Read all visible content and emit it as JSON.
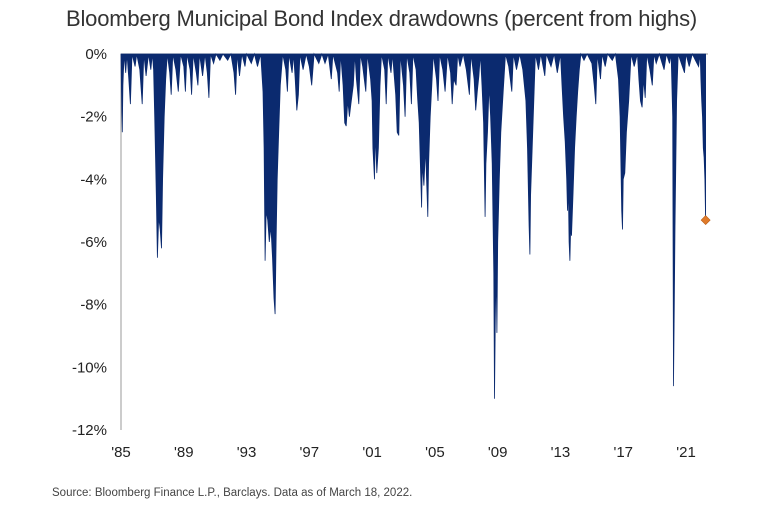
{
  "chart_data": {
    "type": "area",
    "title": "Bloomberg Municipal Bond Index drawdowns (percent from highs)",
    "xlabel": "",
    "ylabel": "",
    "x_tick_labels": [
      "'85",
      "'89",
      "'93",
      "'97",
      "'01",
      "'05",
      "'09",
      "'13",
      "'17",
      "'21"
    ],
    "x_ticks": [
      1985,
      1989,
      1993,
      1997,
      2001,
      2005,
      2009,
      2013,
      2017,
      2021
    ],
    "y_tick_labels": [
      "0%",
      "-2%",
      "-4%",
      "-6%",
      "-8%",
      "-10%",
      "-12%"
    ],
    "y_ticks": [
      0,
      -2,
      -4,
      -6,
      -8,
      -10,
      -12
    ],
    "xlim": [
      1985,
      2022.4
    ],
    "ylim": [
      -12,
      0
    ],
    "grid": false,
    "series": [
      {
        "color": "#0b2a6f",
        "points": [
          [
            1985.0,
            0
          ],
          [
            1985.03,
            -1.2
          ],
          [
            1985.08,
            -2.5
          ],
          [
            1985.12,
            -1.0
          ],
          [
            1985.2,
            0
          ],
          [
            1985.3,
            -0.6
          ],
          [
            1985.38,
            0
          ],
          [
            1985.5,
            -0.8
          ],
          [
            1985.6,
            -1.6
          ],
          [
            1985.7,
            0
          ],
          [
            1985.9,
            -0.4
          ],
          [
            1986.0,
            0
          ],
          [
            1986.2,
            -0.5
          ],
          [
            1986.35,
            -1.6
          ],
          [
            1986.45,
            0
          ],
          [
            1986.6,
            -0.7
          ],
          [
            1986.75,
            0
          ],
          [
            1986.9,
            -0.5
          ],
          [
            1987.0,
            0
          ],
          [
            1987.08,
            -0.5
          ],
          [
            1987.15,
            -2.0
          ],
          [
            1987.25,
            -4.5
          ],
          [
            1987.32,
            -6.5
          ],
          [
            1987.4,
            -5.2
          ],
          [
            1987.5,
            -5.6
          ],
          [
            1987.58,
            -6.2
          ],
          [
            1987.65,
            -4.0
          ],
          [
            1987.75,
            -2.0
          ],
          [
            1987.85,
            -0.8
          ],
          [
            1987.95,
            0
          ],
          [
            1988.1,
            -0.6
          ],
          [
            1988.2,
            -1.3
          ],
          [
            1988.3,
            0
          ],
          [
            1988.5,
            -0.5
          ],
          [
            1988.65,
            -1.2
          ],
          [
            1988.8,
            0
          ],
          [
            1989.0,
            -0.4
          ],
          [
            1989.1,
            -1.2
          ],
          [
            1989.2,
            0
          ],
          [
            1989.4,
            -0.5
          ],
          [
            1989.5,
            -1.3
          ],
          [
            1989.6,
            0
          ],
          [
            1989.8,
            -0.6
          ],
          [
            1989.9,
            -1.0
          ],
          [
            1990.0,
            0
          ],
          [
            1990.2,
            -0.7
          ],
          [
            1990.35,
            0
          ],
          [
            1990.5,
            -0.6
          ],
          [
            1990.6,
            -1.4
          ],
          [
            1990.7,
            0
          ],
          [
            1990.9,
            -0.3
          ],
          [
            1991.05,
            0
          ],
          [
            1991.3,
            -0.2
          ],
          [
            1991.5,
            0
          ],
          [
            1991.8,
            -0.2
          ],
          [
            1992.0,
            0
          ],
          [
            1992.2,
            -0.6
          ],
          [
            1992.3,
            -1.3
          ],
          [
            1992.4,
            0
          ],
          [
            1992.55,
            -0.7
          ],
          [
            1992.7,
            0
          ],
          [
            1992.9,
            -0.4
          ],
          [
            1993.0,
            0
          ],
          [
            1993.3,
            -0.3
          ],
          [
            1993.5,
            0
          ],
          [
            1993.7,
            -0.4
          ],
          [
            1993.9,
            0
          ],
          [
            1994.05,
            -1.2
          ],
          [
            1994.12,
            -3.0
          ],
          [
            1994.18,
            -6.6
          ],
          [
            1994.25,
            -5.0
          ],
          [
            1994.35,
            -5.3
          ],
          [
            1994.45,
            -6.0
          ],
          [
            1994.55,
            -5.5
          ],
          [
            1994.65,
            -6.5
          ],
          [
            1994.75,
            -7.8
          ],
          [
            1994.82,
            -8.3
          ],
          [
            1994.88,
            -6.0
          ],
          [
            1994.95,
            -4.0
          ],
          [
            1995.05,
            -2.5
          ],
          [
            1995.15,
            -1.0
          ],
          [
            1995.3,
            0
          ],
          [
            1995.5,
            -0.5
          ],
          [
            1995.6,
            -1.2
          ],
          [
            1995.7,
            0
          ],
          [
            1995.9,
            -0.6
          ],
          [
            1996.0,
            0
          ],
          [
            1996.1,
            -0.8
          ],
          [
            1996.2,
            -1.8
          ],
          [
            1996.3,
            -1.3
          ],
          [
            1996.4,
            0
          ],
          [
            1996.6,
            -0.5
          ],
          [
            1996.8,
            0
          ],
          [
            1997.0,
            -0.4
          ],
          [
            1997.15,
            -1.0
          ],
          [
            1997.3,
            0
          ],
          [
            1997.6,
            -0.3
          ],
          [
            1997.8,
            0
          ],
          [
            1998.0,
            -0.3
          ],
          [
            1998.2,
            0
          ],
          [
            1998.4,
            -0.8
          ],
          [
            1998.5,
            0
          ],
          [
            1998.8,
            -0.6
          ],
          [
            1998.9,
            -1.2
          ],
          [
            1999.0,
            0
          ],
          [
            1999.15,
            -1.0
          ],
          [
            1999.25,
            -2.2
          ],
          [
            1999.35,
            -2.3
          ],
          [
            1999.45,
            -1.5
          ],
          [
            1999.55,
            -2.0
          ],
          [
            1999.65,
            -1.6
          ],
          [
            1999.8,
            -1.0
          ],
          [
            1999.9,
            0
          ],
          [
            2000.0,
            -0.8
          ],
          [
            2000.15,
            -1.6
          ],
          [
            2000.25,
            0
          ],
          [
            2000.4,
            -0.4
          ],
          [
            2000.6,
            -1.2
          ],
          [
            2000.7,
            0
          ],
          [
            2000.9,
            -0.8
          ],
          [
            2001.0,
            -1.5
          ],
          [
            2001.05,
            -3.0
          ],
          [
            2001.1,
            -3.5
          ],
          [
            2001.15,
            -4.0
          ],
          [
            2001.2,
            -2.5
          ],
          [
            2001.3,
            -3.8
          ],
          [
            2001.4,
            -3.0
          ],
          [
            2001.5,
            -1.0
          ],
          [
            2001.6,
            0
          ],
          [
            2001.8,
            -0.5
          ],
          [
            2001.9,
            -1.6
          ],
          [
            2002.0,
            0
          ],
          [
            2002.2,
            -0.6
          ],
          [
            2002.3,
            0
          ],
          [
            2002.5,
            -1.3
          ],
          [
            2002.6,
            -2.5
          ],
          [
            2002.7,
            -2.6
          ],
          [
            2002.8,
            0
          ],
          [
            2003.0,
            -1.0
          ],
          [
            2003.1,
            -2.0
          ],
          [
            2003.2,
            0
          ],
          [
            2003.4,
            -0.6
          ],
          [
            2003.5,
            -1.6
          ],
          [
            2003.6,
            0
          ],
          [
            2003.8,
            -0.5
          ],
          [
            2003.9,
            -1.4
          ],
          [
            2004.0,
            -2.2
          ],
          [
            2004.1,
            -4.0
          ],
          [
            2004.15,
            -4.9
          ],
          [
            2004.2,
            -3.5
          ],
          [
            2004.3,
            -4.2
          ],
          [
            2004.4,
            -3.0
          ],
          [
            2004.5,
            -4.5
          ],
          [
            2004.55,
            -5.2
          ],
          [
            2004.6,
            -3.5
          ],
          [
            2004.7,
            -2.0
          ],
          [
            2004.8,
            -1.0
          ],
          [
            2004.9,
            0
          ],
          [
            2005.1,
            -0.8
          ],
          [
            2005.2,
            -1.5
          ],
          [
            2005.3,
            0
          ],
          [
            2005.5,
            -0.5
          ],
          [
            2005.65,
            -1.2
          ],
          [
            2005.8,
            0
          ],
          [
            2006.0,
            -0.6
          ],
          [
            2006.1,
            -1.6
          ],
          [
            2006.2,
            -0.8
          ],
          [
            2006.35,
            -1.0
          ],
          [
            2006.45,
            0
          ],
          [
            2006.6,
            -0.4
          ],
          [
            2006.8,
            0
          ],
          [
            2007.0,
            -0.5
          ],
          [
            2007.2,
            -1.3
          ],
          [
            2007.3,
            0
          ],
          [
            2007.5,
            -0.8
          ],
          [
            2007.6,
            -1.8
          ],
          [
            2007.7,
            -1.2
          ],
          [
            2007.8,
            -0.7
          ],
          [
            2007.9,
            0
          ],
          [
            2008.0,
            -1.0
          ],
          [
            2008.1,
            -2.2
          ],
          [
            2008.2,
            -5.2
          ],
          [
            2008.25,
            -3.5
          ],
          [
            2008.35,
            -2.5
          ],
          [
            2008.45,
            -1.0
          ],
          [
            2008.55,
            -2.0
          ],
          [
            2008.65,
            -3.5
          ],
          [
            2008.75,
            -7.0
          ],
          [
            2008.8,
            -11.0
          ],
          [
            2008.85,
            -8.5
          ],
          [
            2008.9,
            -6.8
          ],
          [
            2008.95,
            -8.9
          ],
          [
            2009.0,
            -6.0
          ],
          [
            2009.1,
            -4.0
          ],
          [
            2009.2,
            -2.5
          ],
          [
            2009.35,
            -1.2
          ],
          [
            2009.5,
            0
          ],
          [
            2009.7,
            -0.4
          ],
          [
            2009.9,
            -1.2
          ],
          [
            2010.0,
            0
          ],
          [
            2010.2,
            -0.5
          ],
          [
            2010.4,
            0
          ],
          [
            2010.6,
            -0.5
          ],
          [
            2010.8,
            -1.5
          ],
          [
            2010.9,
            -3.0
          ],
          [
            2011.0,
            -5.5
          ],
          [
            2011.05,
            -6.4
          ],
          [
            2011.1,
            -4.5
          ],
          [
            2011.2,
            -3.0
          ],
          [
            2011.3,
            -1.5
          ],
          [
            2011.4,
            0
          ],
          [
            2011.6,
            -0.5
          ],
          [
            2011.75,
            0
          ],
          [
            2012.0,
            -0.7
          ],
          [
            2012.1,
            0
          ],
          [
            2012.4,
            -0.4
          ],
          [
            2012.6,
            0
          ],
          [
            2012.8,
            -0.6
          ],
          [
            2013.0,
            0
          ],
          [
            2013.1,
            -1.0
          ],
          [
            2013.2,
            -2.0
          ],
          [
            2013.3,
            -2.8
          ],
          [
            2013.4,
            -4.0
          ],
          [
            2013.45,
            -5.0
          ],
          [
            2013.5,
            -4.2
          ],
          [
            2013.55,
            -6.0
          ],
          [
            2013.6,
            -6.6
          ],
          [
            2013.65,
            -5.5
          ],
          [
            2013.7,
            -5.8
          ],
          [
            2013.8,
            -4.5
          ],
          [
            2013.9,
            -3.0
          ],
          [
            2014.0,
            -2.0
          ],
          [
            2014.1,
            -1.2
          ],
          [
            2014.2,
            -0.5
          ],
          [
            2014.3,
            0
          ],
          [
            2014.5,
            -0.2
          ],
          [
            2014.7,
            0
          ],
          [
            2015.0,
            -0.3
          ],
          [
            2015.15,
            -1.0
          ],
          [
            2015.25,
            -1.6
          ],
          [
            2015.35,
            0
          ],
          [
            2015.55,
            -0.8
          ],
          [
            2015.65,
            0
          ],
          [
            2015.85,
            -0.4
          ],
          [
            2016.0,
            0
          ],
          [
            2016.3,
            -0.2
          ],
          [
            2016.5,
            0
          ],
          [
            2016.7,
            -0.8
          ],
          [
            2016.8,
            -2.0
          ],
          [
            2016.85,
            -3.5
          ],
          [
            2016.9,
            -5.0
          ],
          [
            2016.95,
            -5.6
          ],
          [
            2017.0,
            -4.0
          ],
          [
            2017.1,
            -3.8
          ],
          [
            2017.2,
            -2.5
          ],
          [
            2017.35,
            -1.5
          ],
          [
            2017.5,
            0
          ],
          [
            2017.7,
            -0.4
          ],
          [
            2017.9,
            0
          ],
          [
            2018.0,
            -0.8
          ],
          [
            2018.1,
            -1.5
          ],
          [
            2018.2,
            -1.7
          ],
          [
            2018.3,
            -0.8
          ],
          [
            2018.4,
            -1.4
          ],
          [
            2018.5,
            0
          ],
          [
            2018.7,
            -0.5
          ],
          [
            2018.85,
            -1.0
          ],
          [
            2018.95,
            0
          ],
          [
            2019.1,
            -0.3
          ],
          [
            2019.3,
            0
          ],
          [
            2019.6,
            -0.5
          ],
          [
            2019.75,
            0
          ],
          [
            2019.95,
            -0.3
          ],
          [
            2020.05,
            0
          ],
          [
            2020.15,
            -2.0
          ],
          [
            2020.2,
            -10.6
          ],
          [
            2020.25,
            -8.0
          ],
          [
            2020.3,
            -5.5
          ],
          [
            2020.35,
            -3.5
          ],
          [
            2020.4,
            -1.5
          ],
          [
            2020.5,
            0
          ],
          [
            2020.7,
            -0.3
          ],
          [
            2020.9,
            -0.6
          ],
          [
            2021.0,
            0
          ],
          [
            2021.2,
            -0.4
          ],
          [
            2021.4,
            0
          ],
          [
            2021.6,
            -0.2
          ],
          [
            2021.8,
            -0.4
          ],
          [
            2021.9,
            0
          ],
          [
            2021.95,
            -0.8
          ],
          [
            2022.0,
            -1.5
          ],
          [
            2022.05,
            -2.0
          ],
          [
            2022.1,
            -3.0
          ],
          [
            2022.15,
            -3.3
          ],
          [
            2022.2,
            -4.0
          ],
          [
            2022.25,
            -5.3
          ]
        ]
      }
    ],
    "marker": {
      "x": 2022.25,
      "y": -5.3,
      "color": "#e07b2a"
    }
  },
  "source_note": "Source: Bloomberg Finance L.P., Barclays. Data as of March 18, 2022."
}
